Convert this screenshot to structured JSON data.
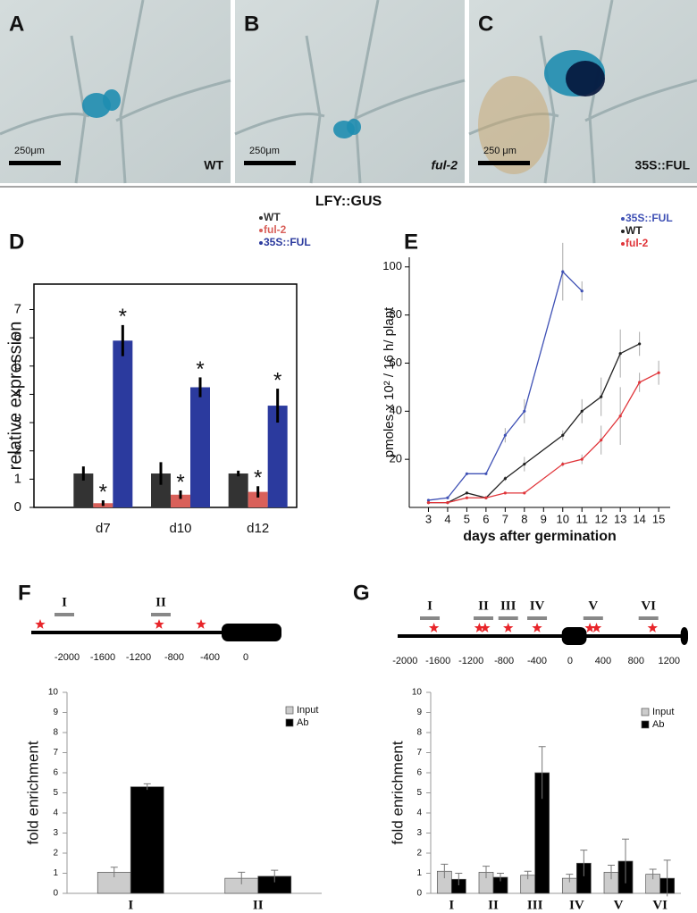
{
  "micrographs": [
    {
      "panel": "A",
      "scale_bar": "250μm",
      "genotype": "WT"
    },
    {
      "panel": "B",
      "scale_bar": "250μm",
      "genotype": "ful-2"
    },
    {
      "panel": "C",
      "scale_bar": "250 μm",
      "genotype": "35S::FUL"
    }
  ],
  "reporter": "LFY::GUS",
  "chart_data": [
    {
      "panel": "D",
      "type": "bar",
      "frame": true,
      "ylabel": "relative expression",
      "categories": [
        "d7",
        "d10",
        "d12"
      ],
      "ylim": [
        0,
        7.9
      ],
      "yticks": [
        0,
        1,
        2,
        3,
        4,
        5,
        6,
        7
      ],
      "series": [
        {
          "name": "WT",
          "color": "#333333",
          "values": [
            1.2,
            1.2,
            1.2
          ],
          "errors": [
            0.25,
            0.4,
            0.1
          ]
        },
        {
          "name": "ful-2",
          "color": "#d9605a",
          "values": [
            0.15,
            0.45,
            0.55
          ],
          "errors": [
            0.1,
            0.15,
            0.2
          ],
          "annotations": [
            "*",
            "*",
            "*"
          ]
        },
        {
          "name": "35S::FUL",
          "color": "#2b3a9e",
          "values": [
            5.9,
            4.25,
            3.6
          ],
          "errors": [
            0.55,
            0.35,
            0.6
          ],
          "annotations": [
            "*",
            "*",
            "*"
          ]
        }
      ]
    },
    {
      "panel": "E",
      "type": "line",
      "xlabel": "days after germination",
      "ylabel": "pmoles x 10² / 16 h/ plant",
      "xlim": [
        2,
        15.6
      ],
      "xticks": [
        3,
        4,
        5,
        6,
        7,
        8,
        9,
        10,
        11,
        12,
        13,
        14,
        15
      ],
      "ylim": [
        0,
        104
      ],
      "yticks": [
        20,
        40,
        60,
        80,
        100
      ],
      "series": [
        {
          "name": "35S::FUL",
          "color": "#3f51b5",
          "x": [
            3,
            4,
            5,
            6,
            7,
            8,
            10,
            11
          ],
          "values": [
            3,
            4,
            14,
            14,
            30,
            40,
            98,
            90
          ],
          "errors": [
            0,
            0,
            0,
            0,
            3,
            5,
            12,
            4
          ]
        },
        {
          "name": "WT",
          "color": "#222222",
          "x": [
            3,
            4,
            5,
            6,
            7,
            8,
            10,
            11,
            12,
            13,
            14
          ],
          "values": [
            2,
            2,
            6,
            4,
            12,
            18,
            30,
            40,
            46,
            64,
            68
          ],
          "errors": [
            0,
            0,
            0,
            0,
            1,
            3,
            2,
            5,
            8,
            10,
            5
          ]
        },
        {
          "name": "ful-2",
          "color": "#e0353a",
          "x": [
            3,
            4,
            5,
            6,
            7,
            8,
            10,
            11,
            12,
            13,
            14,
            15
          ],
          "values": [
            2,
            2,
            4,
            4,
            6,
            6,
            18,
            20,
            28,
            38,
            52,
            56
          ],
          "errors": [
            0,
            0,
            0,
            0,
            0,
            0,
            1,
            2,
            6,
            12,
            4,
            5
          ]
        }
      ]
    },
    {
      "panel": "F",
      "type": "map",
      "xlim": [
        -2400,
        400
      ],
      "xticks": [
        -2000,
        -1600,
        -1200,
        -800,
        -400,
        0
      ],
      "exons": [
        [
          -270,
          400
        ]
      ],
      "regions": {
        "labels": [
          "I",
          "II"
        ],
        "x": [
          -2030,
          -950
        ]
      },
      "sites": [
        -2300,
        -970,
        -500
      ]
    },
    {
      "type": "bar",
      "ylabel": "fold enrichment",
      "categories": [
        "I",
        "II"
      ],
      "ylim": [
        0,
        10
      ],
      "yticks": [
        0,
        1,
        2,
        3,
        4,
        5,
        6,
        7,
        8,
        9,
        10
      ],
      "series": [
        {
          "name": "Input",
          "color": "#cccccc",
          "values": [
            1.05,
            0.75
          ],
          "errors": [
            0.25,
            0.3
          ]
        },
        {
          "name": "Ab",
          "color": "#000000",
          "values": [
            5.3,
            0.85
          ],
          "errors": [
            0.15,
            0.3
          ]
        }
      ]
    },
    {
      "panel": "G",
      "type": "map",
      "xlim": [
        -2090,
        1430
      ],
      "xticks": [
        -2000,
        -1600,
        -1200,
        -800,
        -400,
        0,
        400,
        800,
        1200
      ],
      "exons": [
        [
          -100,
          200
        ],
        [
          1340,
          1430
        ]
      ],
      "regions": {
        "labels": [
          "I",
          "II",
          "III",
          "IV",
          "V",
          "VI"
        ],
        "x": [
          -1700,
          -1050,
          -750,
          -400,
          280,
          950
        ]
      },
      "sites": [
        -1650,
        -1100,
        -1030,
        -750,
        -400,
        240,
        320,
        1000
      ]
    },
    {
      "type": "bar",
      "ylabel": "fold enrichment",
      "categories": [
        "I",
        "II",
        "III",
        "IV",
        "V",
        "VI"
      ],
      "ylim": [
        0,
        10
      ],
      "yticks": [
        0,
        1,
        2,
        3,
        4,
        5,
        6,
        7,
        8,
        9,
        10
      ],
      "series": [
        {
          "name": "Input",
          "color": "#cccccc",
          "values": [
            1.1,
            1.05,
            0.9,
            0.75,
            1.05,
            0.95
          ],
          "errors": [
            0.35,
            0.3,
            0.2,
            0.2,
            0.35,
            0.25
          ]
        },
        {
          "name": "Ab",
          "color": "#000000",
          "values": [
            0.7,
            0.8,
            6.0,
            1.5,
            1.6,
            0.75
          ],
          "errors": [
            0.3,
            0.2,
            1.3,
            0.65,
            1.1,
            0.9
          ]
        }
      ]
    }
  ]
}
